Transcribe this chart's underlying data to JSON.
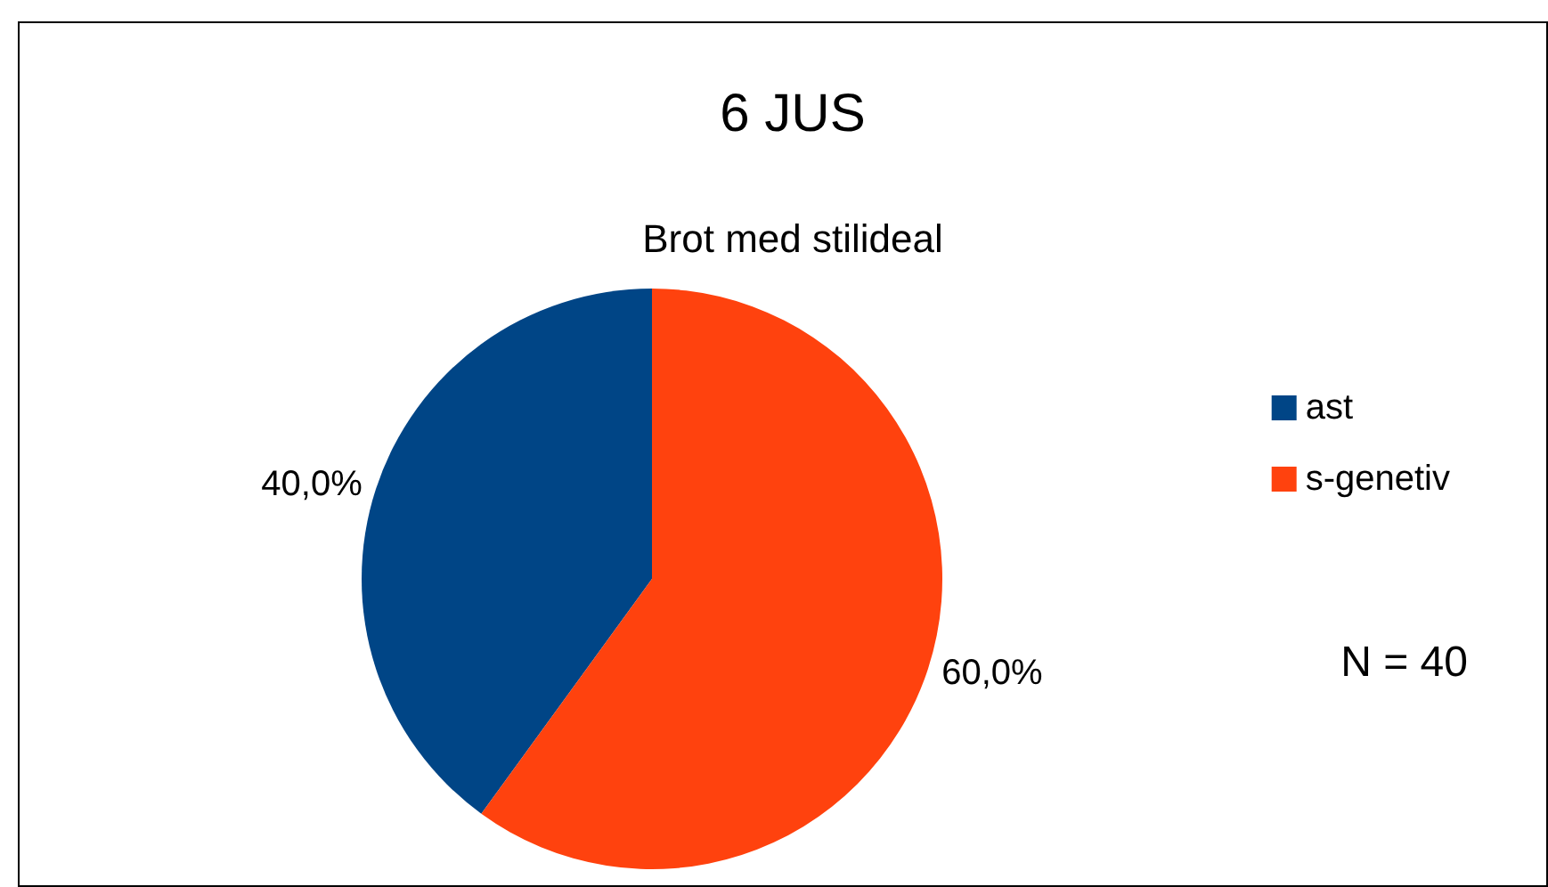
{
  "chart_data": {
    "type": "pie",
    "title": "6 JUS",
    "subtitle": "Brot med stilideal",
    "categories": [
      "ast",
      "s-genetiv"
    ],
    "values": [
      40,
      60
    ],
    "colors": [
      "#004586",
      "#ff420e"
    ],
    "value_labels": [
      "40,0%",
      "60,0%"
    ],
    "legend": "right",
    "annotations": [
      "N = 40"
    ]
  }
}
